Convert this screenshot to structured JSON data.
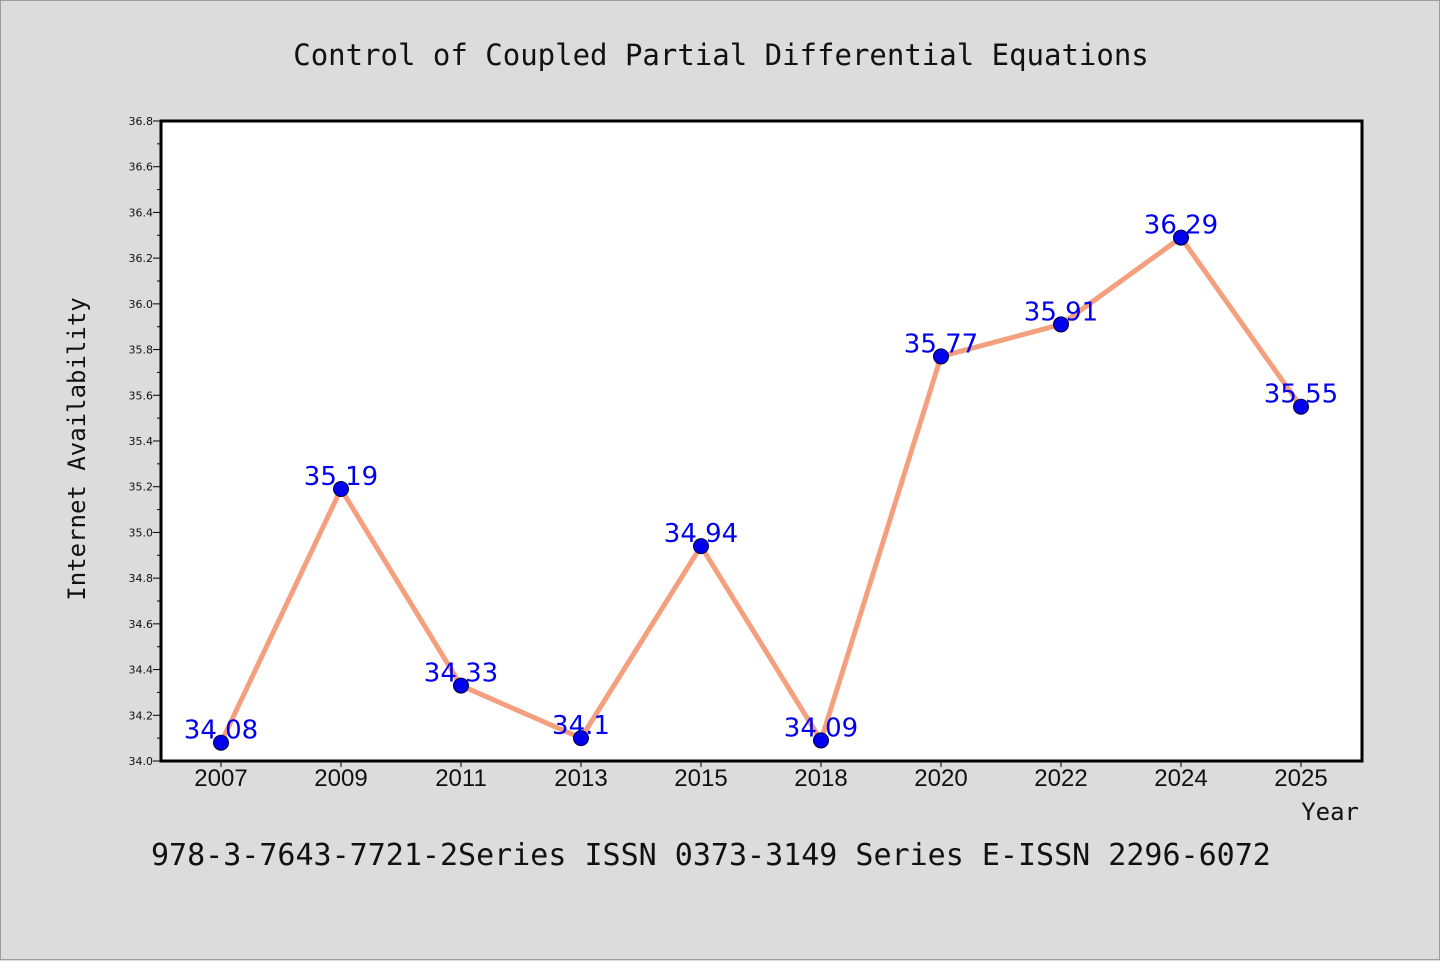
{
  "chart_data": {
    "type": "line",
    "title": "Control of Coupled Partial Differential Equations",
    "xlabel": "Year",
    "ylabel": "Internet Availability",
    "categories": [
      "2007",
      "2009",
      "2011",
      "2013",
      "2015",
      "2018",
      "2020",
      "2022",
      "2024",
      "2025"
    ],
    "values": [
      34.08,
      35.19,
      34.33,
      34.1,
      34.94,
      34.09,
      35.77,
      35.91,
      36.29,
      35.55
    ],
    "data_labels": [
      "34.08",
      "35.19",
      "34.33",
      "34.1",
      "34.94",
      "34.09",
      "35.77",
      "35.91",
      "36.29",
      "35.55"
    ],
    "ylim": [
      34.0,
      36.8
    ],
    "yticks": [
      "34.0",
      "34.2",
      "34.4",
      "34.6",
      "34.8",
      "35.0",
      "35.2",
      "35.4",
      "35.6",
      "35.8",
      "36.0",
      "36.2",
      "36.4",
      "36.6",
      "36.8"
    ],
    "grid": false,
    "legend": "none",
    "line_color": "#f4a07e",
    "marker_color": "#0000ee",
    "label_color": "#0000ee"
  },
  "footer": {
    "text": "978-3-7643-7721-2Series ISSN 0373-3149 Series E-ISSN 2296-6072"
  }
}
